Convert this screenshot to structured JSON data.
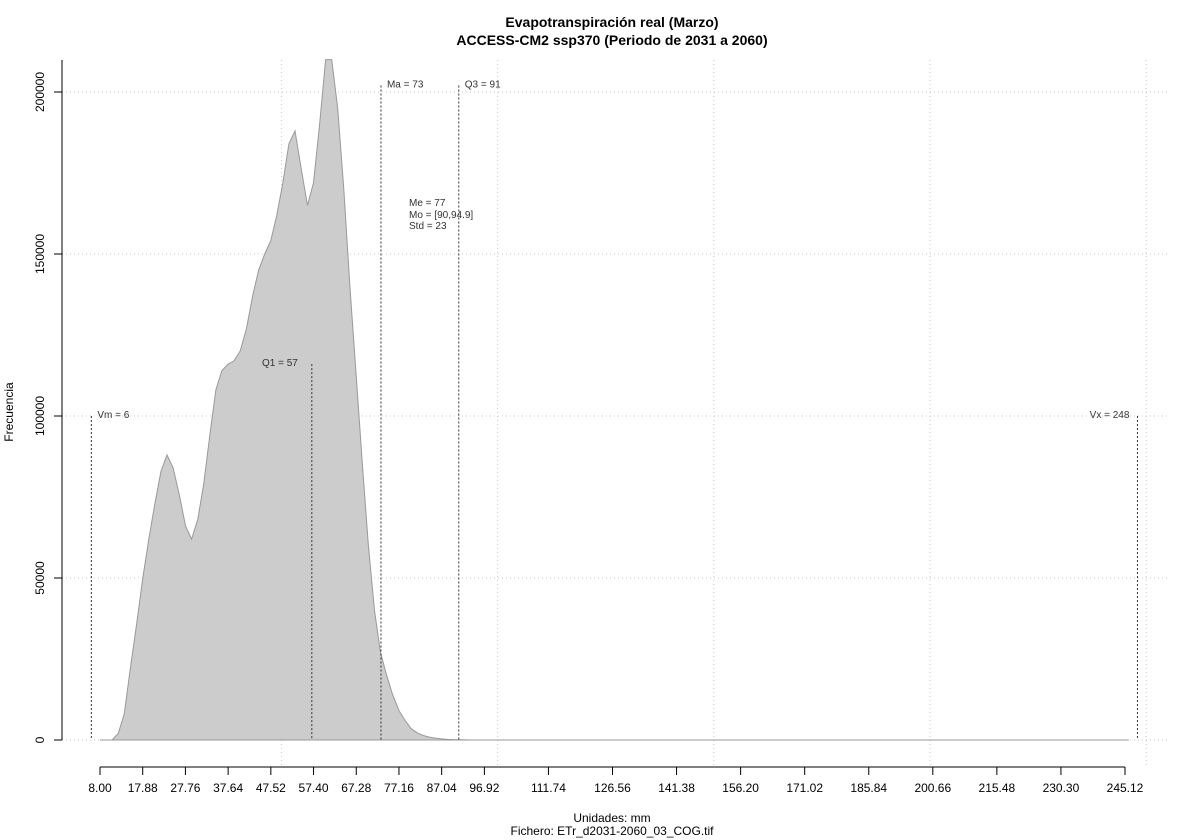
{
  "chart_data": {
    "type": "area",
    "title": "Evapotranspiración real (Marzo)",
    "subtitle": "ACCESS-CM2 ssp370 (Periodo de 2031 a 2060)",
    "xlabel": "Unidades: mm",
    "ylabel": "Frecuencia",
    "caption": "Fichero: ETr_d2031-2060_03_COG.tif",
    "xlim": [
      6,
      248
    ],
    "ylim": [
      0,
      210000
    ],
    "x_ticks": [
      "8.00",
      "17.88",
      "27.76",
      "37.64",
      "47.52",
      "57.40",
      "67.28",
      "77.16",
      "87.04",
      "96.92",
      "111.74",
      "126.56",
      "141.38",
      "156.20",
      "171.02",
      "185.84",
      "200.66",
      "215.48",
      "230.30",
      "245.12"
    ],
    "y_ticks": [
      "0",
      "50000",
      "100000",
      "150000",
      "200000"
    ],
    "grid": true,
    "fill_color": "#cccccc",
    "series": [
      {
        "x": [
          8,
          9.4,
          10.8,
          12.2,
          13.6,
          15,
          16.5,
          17.9,
          19.3,
          20.7,
          22.1,
          23.5,
          24.9,
          26.3,
          27.8,
          29.2,
          30.6,
          32,
          33.4,
          34.8,
          36.2,
          37.6,
          39,
          40.4,
          41.9,
          43.3,
          44.7,
          46.1,
          47.5,
          48.9,
          50.3,
          51.7,
          53.1,
          54.6,
          56,
          57.4,
          58.8,
          60.2,
          61.6,
          63,
          64.4,
          65.8,
          67.3,
          68.7,
          70.1,
          71.5,
          72.9,
          74.3,
          75.7,
          77.2,
          78.6,
          80,
          81.4,
          82.8,
          84.2,
          85.6,
          87,
          88.4,
          89.8,
          91.3,
          92.7,
          94.1,
          95.5,
          96.9,
          98.3,
          99.7,
          101.1,
          102.5,
          104,
          105.4,
          106.8,
          108.2,
          109.6,
          111,
          112.4,
          113.8,
          115.2,
          116.7,
          118.1,
          119.5,
          120.9,
          122.3,
          123.7,
          125.1,
          126.5,
          127.9,
          129.4,
          130.8,
          132.2,
          133.6,
          135,
          136.4,
          137.8,
          139.2,
          140.6,
          142,
          145,
          150,
          160,
          175,
          200,
          225,
          246
        ],
        "values": [
          0,
          0,
          0,
          2000,
          8000,
          22000,
          36000,
          50000,
          62000,
          73000,
          83000,
          88000,
          84000,
          76000,
          66000,
          62000,
          68000,
          79000,
          94000,
          108000,
          114000,
          116000,
          117000,
          120000,
          127000,
          137000,
          145000,
          150000,
          154000,
          162000,
          172000,
          184000,
          188000,
          176000,
          165000,
          172000,
          190000,
          210000,
          210000,
          195000,
          170000,
          140000,
          112000,
          85000,
          60000,
          40000,
          27000,
          20000,
          14000,
          9000,
          6000,
          3500,
          2200,
          1400,
          900,
          600,
          350,
          200,
          120,
          60,
          30,
          15,
          8,
          0,
          0,
          0,
          0,
          0,
          0,
          0,
          0,
          0,
          0,
          0,
          0,
          0,
          0,
          0,
          0,
          0,
          0,
          0,
          0,
          0,
          0,
          0,
          0,
          0,
          0,
          0,
          0,
          0,
          0,
          0,
          0,
          0,
          0,
          0,
          0,
          0,
          0,
          0,
          0
        ]
      }
    ],
    "annotations": [
      {
        "label": "Vm = 6",
        "x": 6,
        "level": 100000
      },
      {
        "label": "Q1 = 57",
        "x": 57,
        "level": 116000
      },
      {
        "label": "Ma = 73",
        "x": 73,
        "level": 202000
      },
      {
        "label": "Q3 = 91",
        "x": 91,
        "level": 202000
      },
      {
        "label": "Vx = 248",
        "x": 248,
        "level": 100000
      }
    ],
    "stats": [
      "Me = 77",
      "Mo = [90,94.9]",
      "Std = 23"
    ]
  }
}
